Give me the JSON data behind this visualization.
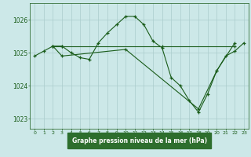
{
  "title": "Graphe pression niveau de la mer (hPa)",
  "bg_color": "#cce8e8",
  "grid_color": "#aacccc",
  "line_color": "#1a5c1a",
  "border_color": "#1a5c1a",
  "title_bg": "#2d6e2d",
  "title_fg": "#ffffff",
  "xlim": [
    -0.5,
    23.5
  ],
  "ylim": [
    1022.7,
    1026.5
  ],
  "yticks": [
    1023,
    1024,
    1025,
    1026
  ],
  "xticks": [
    0,
    1,
    2,
    3,
    4,
    5,
    6,
    7,
    8,
    9,
    10,
    11,
    12,
    13,
    14,
    15,
    16,
    17,
    18,
    19,
    20,
    21,
    22,
    23
  ],
  "series": [
    {
      "x": [
        0,
        1,
        2,
        3,
        4,
        5,
        6,
        7,
        8,
        9,
        10,
        11,
        12,
        13,
        14,
        15,
        16,
        17,
        18,
        19,
        20,
        21,
        22,
        23
      ],
      "y": [
        1024.9,
        1025.05,
        1025.2,
        1025.2,
        1025.0,
        1024.85,
        1024.8,
        1025.3,
        1025.6,
        1025.85,
        1026.1,
        1026.1,
        1025.85,
        1025.35,
        1025.15,
        1024.25,
        1024.0,
        1023.55,
        1023.2,
        1023.75,
        1024.45,
        1024.9,
        1025.05,
        1025.3
      ]
    },
    {
      "x": [
        2,
        3,
        14,
        22
      ],
      "y": [
        1025.2,
        1025.2,
        1025.2,
        1025.2
      ]
    },
    {
      "x": [
        2,
        3,
        10,
        18,
        20,
        22
      ],
      "y": [
        1025.2,
        1024.9,
        1025.1,
        1023.3,
        1024.45,
        1025.3
      ]
    }
  ]
}
